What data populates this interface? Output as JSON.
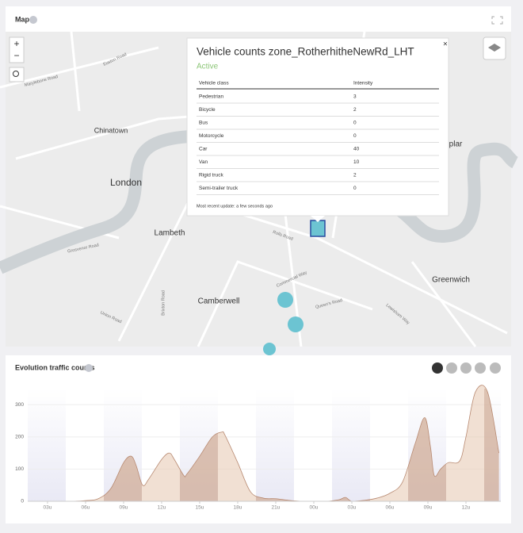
{
  "map": {
    "title": "Map",
    "zoom_in": "+",
    "zoom_out": "−",
    "places": [
      "Chinatown",
      "London",
      "Lambeth",
      "Camberwell",
      "Greenwich",
      "plar"
    ],
    "roads": [
      "Euston Road",
      "Marylebone Road",
      "Grosvenor Road",
      "Rolls Road",
      "Commercial Way",
      "Queen's Road",
      "Lewisham Way",
      "Brixton Road",
      "Union Road"
    ]
  },
  "popup": {
    "title": "Vehicle counts zone_RotherhitheNewRd_LHT",
    "status": "Active",
    "columns": [
      "Vehicle class",
      "Intensity"
    ],
    "rows": [
      [
        "Pedestrian",
        3
      ],
      [
        "Bicycle",
        2
      ],
      [
        "Bus",
        0
      ],
      [
        "Motorcycle",
        0
      ],
      [
        "Car",
        40
      ],
      [
        "Van",
        10
      ],
      [
        "Rigid truck",
        2
      ],
      [
        "Semi-trailer truck",
        0
      ]
    ],
    "footer": "Most recent update: a few seconds ago"
  },
  "chart": {
    "title": "Evolution traffic counts",
    "type": "area",
    "color": "#e8cbb6",
    "line_color": "#b88a72",
    "x": [
      2,
      3,
      4,
      5,
      6,
      7,
      8,
      9,
      9.6,
      10,
      10.5,
      11,
      12,
      12.6,
      13,
      13.75,
      14,
      15,
      16,
      16.75,
      17,
      18,
      19,
      20,
      21,
      22,
      23,
      24,
      25,
      26,
      26.5,
      27,
      28,
      29,
      30,
      31,
      32,
      32.75,
      33.2,
      33.5,
      34,
      34.6,
      35.5,
      36,
      36.75,
      37.7,
      38.6
    ],
    "values": [
      0,
      0,
      0,
      0,
      2,
      8,
      40,
      120,
      140,
      110,
      50,
      70,
      130,
      150,
      130,
      80,
      85,
      140,
      200,
      215,
      205,
      120,
      30,
      10,
      8,
      3,
      0,
      0,
      0,
      5,
      12,
      0,
      3,
      10,
      25,
      60,
      180,
      260,
      170,
      80,
      100,
      120,
      125,
      200,
      340,
      340,
      150
    ],
    "xlim": [
      1.44,
      38.75
    ],
    "ylim": [
      0,
      350
    ],
    "yticks": [
      0,
      100,
      200,
      300
    ],
    "xticks": [
      {
        "value": 3,
        "label": "03u"
      },
      {
        "value": 6,
        "label": "06u"
      },
      {
        "value": 9,
        "label": "09u"
      },
      {
        "value": 12,
        "label": "12u"
      },
      {
        "value": 15,
        "label": "15u"
      },
      {
        "value": 18,
        "label": "18u"
      },
      {
        "value": 21,
        "label": "21u"
      },
      {
        "value": 24,
        "label": "00u"
      },
      {
        "value": 27,
        "label": "03u"
      },
      {
        "value": 30,
        "label": "06u"
      },
      {
        "value": 33,
        "label": "09u"
      },
      {
        "value": 36,
        "label": "12u"
      }
    ]
  }
}
